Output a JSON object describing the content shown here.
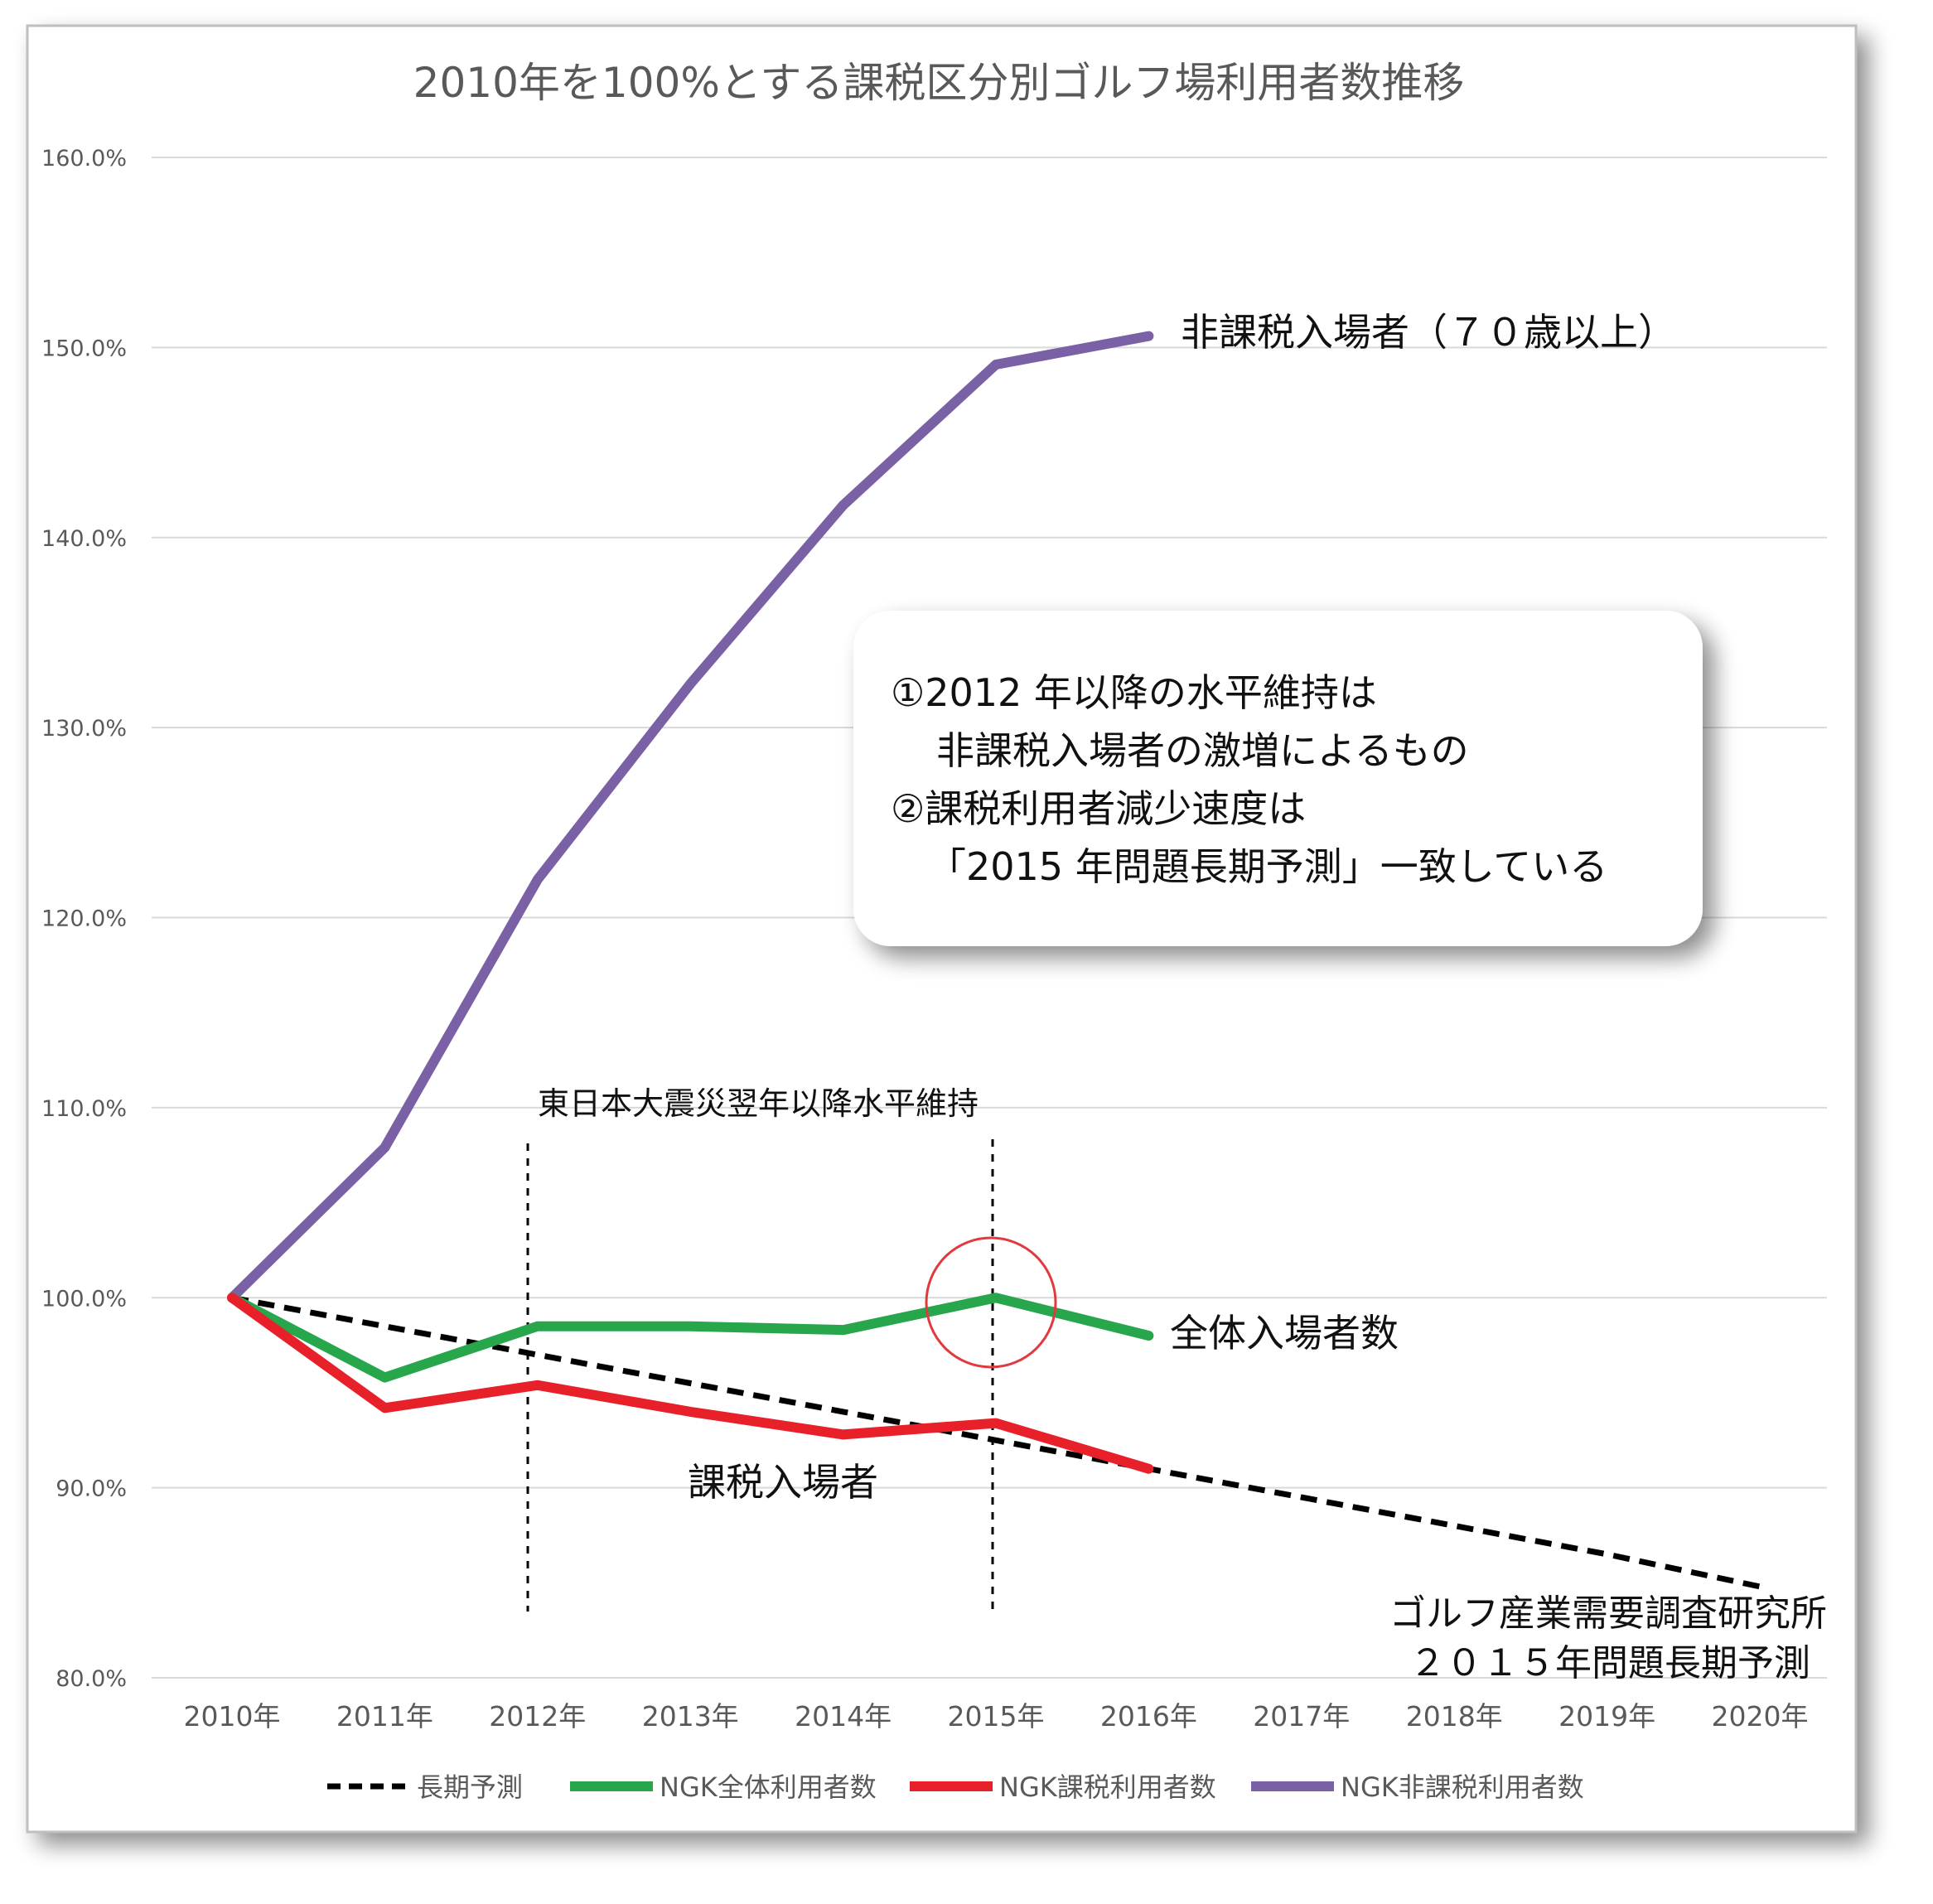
{
  "chart_data": {
    "type": "line",
    "title": "2010年を100%とする課税区分別ゴルフ場利用者数推移",
    "categories": [
      "2010年",
      "2011年",
      "2012年",
      "2013年",
      "2014年",
      "2015年",
      "2016年",
      "2017年",
      "2018年",
      "2019年",
      "2020年"
    ],
    "y_ticks": [
      "160.0%",
      "150.0%",
      "140.0%",
      "130.0%",
      "120.0%",
      "110.0%",
      "100.0%",
      "90.0%",
      "80.0%"
    ],
    "ylim": [
      80,
      160
    ],
    "grid": true,
    "legend_position": "bottom",
    "series": [
      {
        "name": "長期予測",
        "color": "#000000",
        "style": "dashed",
        "values": [
          100.0,
          98.5,
          97.0,
          95.5,
          94.0,
          92.5,
          91.0,
          89.5,
          88.0,
          86.5,
          84.8
        ]
      },
      {
        "name": "NGK全体利用者数",
        "color": "#27a64b",
        "style": "solid",
        "values": [
          100.0,
          95.8,
          98.5,
          98.5,
          98.3,
          100.0,
          98.0,
          null,
          null,
          null,
          null
        ]
      },
      {
        "name": "NGK課税利用者数",
        "color": "#e8202a",
        "style": "solid",
        "values": [
          100.0,
          94.2,
          95.4,
          94.0,
          92.8,
          93.4,
          91.0,
          null,
          null,
          null,
          null
        ]
      },
      {
        "name": "NGK非課税利用者数",
        "color": "#7a60a5",
        "style": "solid",
        "values": [
          100.0,
          107.9,
          122.0,
          132.3,
          141.7,
          149.1,
          150.6,
          null,
          null,
          null,
          null
        ]
      }
    ],
    "annotations": {
      "nontax_label": "非課税入場者（７０歳以上）",
      "total_label": "全体入場者数",
      "taxed_label": "課税入場者",
      "plateau_label": "東日本大震災翌年以降水平維持",
      "forecast_label_1": "ゴルフ産業需要調査研究所",
      "forecast_label_2": "２０１５年問題長期予測",
      "note_lines": [
        "①2012 年以降の水平維持は",
        "非課税入場者の激増によるもの",
        "②課税利用者減少速度は",
        "「2015 年問題長期予測」一致している"
      ]
    }
  }
}
